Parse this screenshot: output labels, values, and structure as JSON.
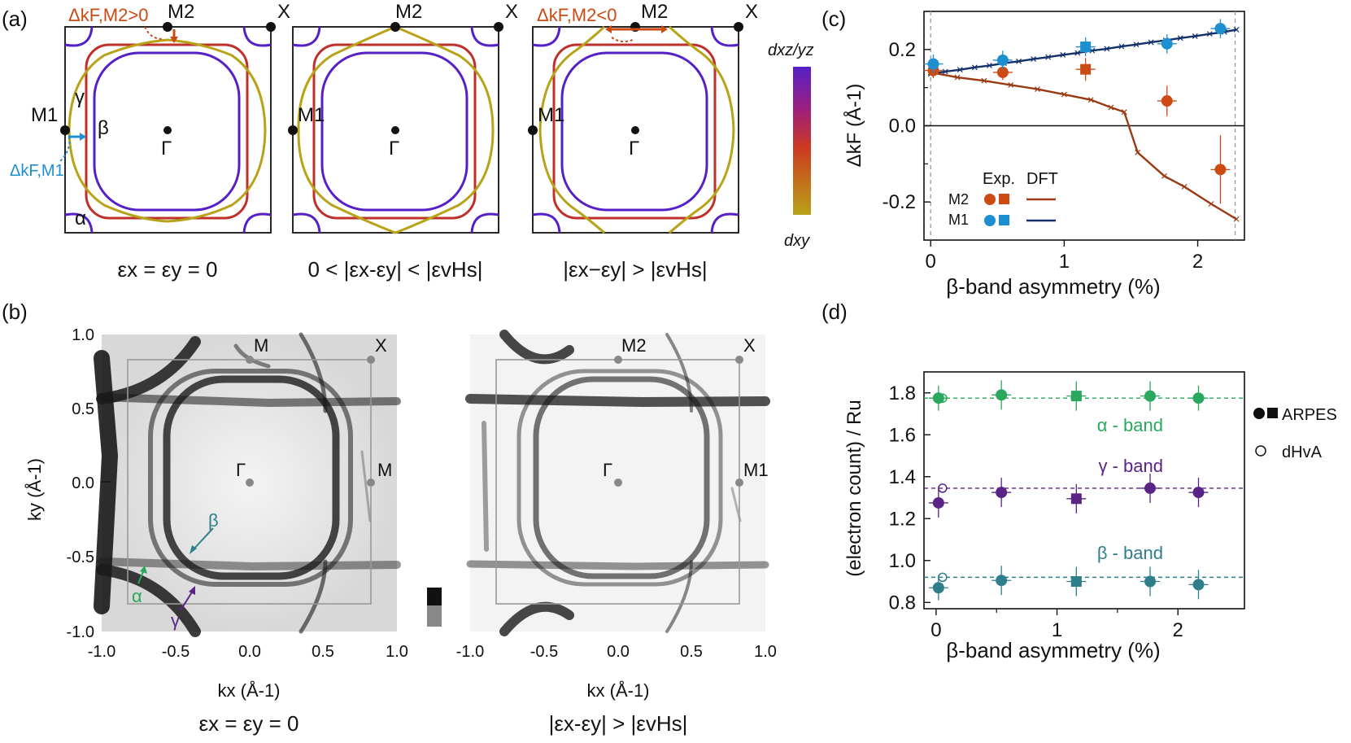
{
  "colors": {
    "orange": "#cc4a14",
    "blue": "#1d8fd0",
    "navy": "#13306a",
    "brown": "#9a3a12",
    "green": "#2aa85e",
    "purple": "#5a2486",
    "teal": "#2e7e8c",
    "dxy": "#b8a218",
    "dxz": "#5520c6"
  },
  "panel_a": {
    "label": "(a)",
    "delta_m2_pos": "ΔkF,M2>0",
    "delta_m2_neg": "ΔkF,M2<0",
    "delta_m1": "ΔkF,M1",
    "m2": "M2",
    "m1": "M1",
    "x": "X",
    "gamma_point": "Γ",
    "band_gamma": "γ",
    "band_beta": "β",
    "band_alpha": "α",
    "colorbar_top": "dxz/yz",
    "colorbar_bottom": "dxy",
    "captions": [
      "εx = εy = 0",
      "0 < |εx-εy| < |εvHs|",
      "|εx−εy| > |εvHs|"
    ]
  },
  "panel_b": {
    "label": "(b)",
    "ylabel": "ky (Å-1)",
    "xlabel": "kx (Å-1)",
    "ticks": [
      "-1.0",
      "-0.5",
      "0.0",
      "0.5",
      "1.0"
    ],
    "left_points": {
      "m_top": "M",
      "x": "X",
      "gamma": "Γ",
      "m_right": "M"
    },
    "right_points": {
      "m_top": "M2",
      "x": "X",
      "gamma": "Γ",
      "m_right": "M1"
    },
    "band_labels": {
      "beta": "β",
      "alpha": "α",
      "gamma": "γ"
    },
    "captions": [
      "εx = εy = 0",
      "|εx-εy| > |εvHs|"
    ]
  },
  "chart_data": [
    {
      "type": "scatter",
      "panel": "(c)",
      "xlabel": "β-band asymmetry (%)",
      "ylabel": "ΔkF (Å-1)",
      "xlim": [
        -0.05,
        2.35
      ],
      "ylim": [
        -0.3,
        0.3
      ],
      "xticks": [
        "0",
        "1",
        "2"
      ],
      "yticks": [
        "-0.2",
        "0.0",
        "0.2"
      ],
      "legend": {
        "exp": "Exp.",
        "dft": "DFT",
        "m2": "M2",
        "m1": "M1"
      },
      "series": [
        {
          "name": "Exp. M2",
          "marker": "circle",
          "x": [
            0.02,
            0.54,
            1.77,
            2.17
          ],
          "y": [
            0.145,
            0.14,
            0.065,
            -0.115
          ],
          "yerr": [
            0.02,
            0.02,
            0.04,
            0.09
          ]
        },
        {
          "name": "Exp. M2",
          "marker": "square",
          "x": [
            1.16
          ],
          "y": [
            0.148
          ],
          "yerr": [
            0.03
          ]
        },
        {
          "name": "Exp. M1",
          "marker": "circle",
          "x": [
            0.02,
            0.54,
            1.77,
            2.17
          ],
          "y": [
            0.162,
            0.172,
            0.215,
            0.255
          ],
          "yerr": [
            0.025,
            0.025,
            0.025,
            0.025
          ]
        },
        {
          "name": "Exp. M1",
          "marker": "square",
          "x": [
            1.16
          ],
          "y": [
            0.207
          ],
          "yerr": [
            0.025
          ]
        },
        {
          "name": "DFT M1",
          "x": [
            0.0,
            0.11,
            0.22,
            0.33,
            0.44,
            0.55,
            0.66,
            0.77,
            0.88,
            0.99,
            1.1,
            1.21,
            1.32,
            1.43,
            1.54,
            1.65,
            1.76,
            1.87,
            1.98,
            2.09,
            2.2,
            2.29
          ],
          "y": [
            0.136,
            0.142,
            0.147,
            0.153,
            0.158,
            0.164,
            0.169,
            0.175,
            0.18,
            0.186,
            0.191,
            0.197,
            0.202,
            0.208,
            0.213,
            0.219,
            0.224,
            0.23,
            0.235,
            0.241,
            0.246,
            0.252
          ]
        },
        {
          "name": "DFT M2",
          "x": [
            0.0,
            0.2,
            0.4,
            0.6,
            0.8,
            1.0,
            1.2,
            1.35,
            1.45,
            1.55,
            1.75,
            1.9,
            2.1,
            2.29
          ],
          "y": [
            0.14,
            0.127,
            0.118,
            0.107,
            0.096,
            0.082,
            0.068,
            0.048,
            0.036,
            -0.07,
            -0.132,
            -0.16,
            -0.205,
            -0.245
          ]
        }
      ],
      "reference_lines_x": [
        0.0,
        2.28
      ]
    },
    {
      "type": "scatter",
      "panel": "(d)",
      "xlabel": "β-band asymmetry (%)",
      "ylabel": "(electron count) / Ru",
      "xlim": [
        -0.1,
        2.55
      ],
      "ylim": [
        0.77,
        1.9
      ],
      "xticks": [
        "0",
        "1",
        "2"
      ],
      "yticks": [
        "0.8",
        "1.0",
        "1.2",
        "1.4",
        "1.6",
        "1.8"
      ],
      "legend": {
        "arpes": "ARPES",
        "dhva": "dHvA"
      },
      "band_labels": {
        "alpha": "α - band",
        "gamma": "γ - band",
        "beta": "β - band"
      },
      "series": [
        {
          "name": "α ARPES",
          "x": [
            0.02,
            0.54,
            1.16,
            1.77,
            2.17
          ],
          "y": [
            1.775,
            1.79,
            1.785,
            1.785,
            1.775
          ],
          "yerr": [
            0.06,
            0.07,
            0.07,
            0.07,
            0.06
          ],
          "square_index": 2
        },
        {
          "name": "γ ARPES",
          "x": [
            0.02,
            0.54,
            1.16,
            1.77,
            2.17
          ],
          "y": [
            1.275,
            1.325,
            1.295,
            1.345,
            1.325
          ],
          "yerr": [
            0.07,
            0.07,
            0.07,
            0.07,
            0.07
          ],
          "square_index": 2
        },
        {
          "name": "β ARPES",
          "x": [
            0.02,
            0.54,
            1.16,
            1.77,
            2.17
          ],
          "y": [
            0.87,
            0.905,
            0.9,
            0.9,
            0.885
          ],
          "yerr": [
            0.06,
            0.07,
            0.07,
            0.07,
            0.07
          ],
          "square_index": 2
        },
        {
          "name": "dHvA",
          "x": [
            0.0,
            0.0,
            0.0
          ],
          "y": [
            1.775,
            1.345,
            0.92
          ]
        }
      ],
      "reference_lines_y": [
        1.775,
        1.345,
        0.92
      ]
    }
  ]
}
